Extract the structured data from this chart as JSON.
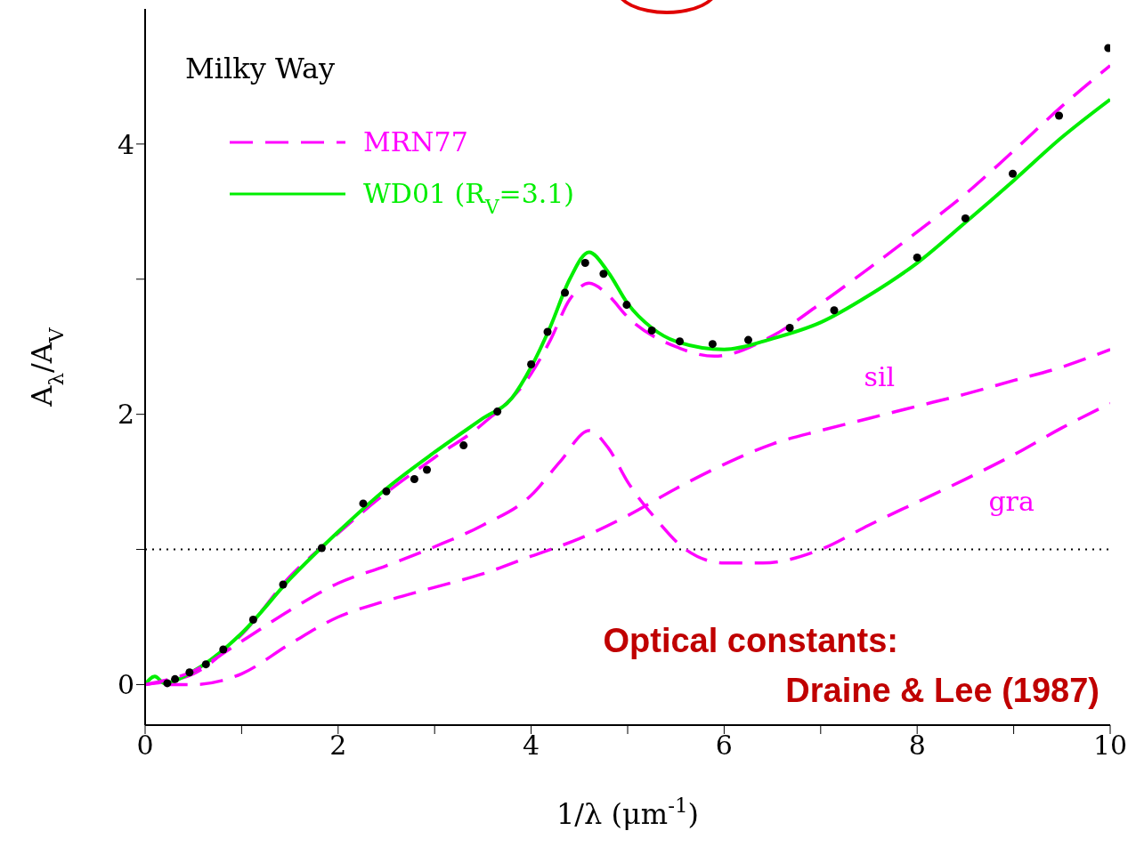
{
  "chart_data": {
    "type": "line",
    "xlabel": "1/λ (μm$^{-1}$)",
    "ylabel": "A$_{λ}$/A$_{V}$",
    "xlim": [
      0,
      10
    ],
    "ylim": [
      -0.3,
      5.0
    ],
    "xticks": [
      0,
      {
        "value": 1,
        "label": null
      },
      2,
      {
        "value": 3,
        "label": null
      },
      4,
      {
        "value": 5,
        "label": null
      },
      6,
      {
        "value": 7,
        "label": null
      },
      8,
      {
        "value": 9,
        "label": null
      },
      10
    ],
    "yticks": [
      0,
      {
        "value": 1,
        "label": null
      },
      2,
      {
        "value": 3,
        "label": null
      },
      4
    ],
    "legend": "top left",
    "ref_lines": [
      {
        "axis": "y",
        "value": 1,
        "color": "#000000",
        "line_style": "dotted"
      }
    ],
    "annotations": [
      "Milky Way",
      "sil",
      "gra",
      "Optical constants:\nDraine & Lee (1987)"
    ],
    "series": [
      {
        "type": "scatter",
        "color": "#000000",
        "marker": "circle",
        "x": [
          0.23,
          0.31,
          0.46,
          0.63,
          0.81,
          1.12,
          1.43,
          1.83,
          2.26,
          2.5,
          2.79,
          2.92,
          3.3,
          3.65,
          4.0,
          4.17,
          4.35,
          4.56,
          4.75,
          4.99,
          5.25,
          5.54,
          5.88,
          6.25,
          6.68,
          7.14,
          8.0,
          8.5,
          8.99,
          9.47,
          9.98
        ],
        "values": [
          0.01,
          0.04,
          0.09,
          0.15,
          0.26,
          0.48,
          0.74,
          1.01,
          1.34,
          1.43,
          1.52,
          1.59,
          1.77,
          2.02,
          2.37,
          2.61,
          2.9,
          3.12,
          3.04,
          2.81,
          2.62,
          2.54,
          2.52,
          2.55,
          2.64,
          2.77,
          3.16,
          3.45,
          3.78,
          4.21,
          4.71
        ]
      },
      {
        "name": "MRN77",
        "color": "#ff00ff",
        "line_style": "dashed",
        "x": [
          0,
          0.5,
          1,
          1.5,
          2,
          2.5,
          3,
          3.5,
          4,
          4.2,
          4.4,
          4.6,
          4.8,
          5,
          5.5,
          5.9,
          6.5,
          7,
          7.5,
          8,
          8.5,
          9,
          9.5,
          10
        ],
        "values": [
          0,
          0.08,
          0.37,
          0.8,
          1.12,
          1.42,
          1.68,
          1.93,
          2.3,
          2.55,
          2.85,
          2.97,
          2.88,
          2.72,
          2.5,
          2.43,
          2.58,
          2.82,
          3.08,
          3.35,
          3.63,
          3.95,
          4.28,
          4.58
        ]
      },
      {
        "name": "WD01 (R$_{V}$=3.1)",
        "color": "#00ee00",
        "line_style": "solid",
        "x": [
          0,
          0.1,
          0.2,
          0.5,
          1,
          1.5,
          2,
          2.5,
          3,
          3.5,
          3.8,
          4,
          4.2,
          4.4,
          4.6,
          4.8,
          5,
          5.25,
          5.5,
          6,
          6.5,
          7,
          7.5,
          8,
          8.5,
          9,
          9.5,
          10
        ],
        "values": [
          0,
          0.06,
          0.01,
          0.1,
          0.38,
          0.78,
          1.13,
          1.45,
          1.72,
          1.97,
          2.12,
          2.35,
          2.65,
          3.0,
          3.2,
          3.05,
          2.82,
          2.64,
          2.54,
          2.48,
          2.56,
          2.68,
          2.88,
          3.12,
          3.42,
          3.73,
          4.05,
          4.33
        ]
      },
      {
        "color": "#ff00ff",
        "line_style": "dashed",
        "x": [
          0,
          0.5,
          1,
          1.5,
          2,
          2.5,
          3,
          3.5,
          4,
          4.3,
          4.6,
          4.8,
          5,
          5.3,
          5.6,
          6,
          6.4,
          7,
          7.5,
          8,
          8.5,
          9,
          9.5,
          10
        ],
        "values": [
          0,
          0.1,
          0.32,
          0.55,
          0.75,
          0.88,
          1.02,
          1.18,
          1.4,
          1.65,
          1.88,
          1.75,
          1.5,
          1.22,
          1.0,
          0.9,
          0.9,
          1.0,
          1.18,
          1.35,
          1.52,
          1.7,
          1.9,
          2.08
        ]
      },
      {
        "color": "#ff00ff",
        "line_style": "dashed",
        "x": [
          0.2,
          0.5,
          0.8,
          1,
          1.5,
          2,
          2.5,
          3,
          3.5,
          4,
          4.5,
          5,
          5.5,
          6,
          6.5,
          7,
          7.5,
          8,
          8.5,
          9,
          9.5,
          10
        ],
        "values": [
          0,
          0,
          0.03,
          0.08,
          0.3,
          0.5,
          0.62,
          0.72,
          0.82,
          0.95,
          1.08,
          1.25,
          1.45,
          1.63,
          1.78,
          1.88,
          1.97,
          2.06,
          2.15,
          2.25,
          2.35,
          2.48
        ]
      }
    ]
  }
}
